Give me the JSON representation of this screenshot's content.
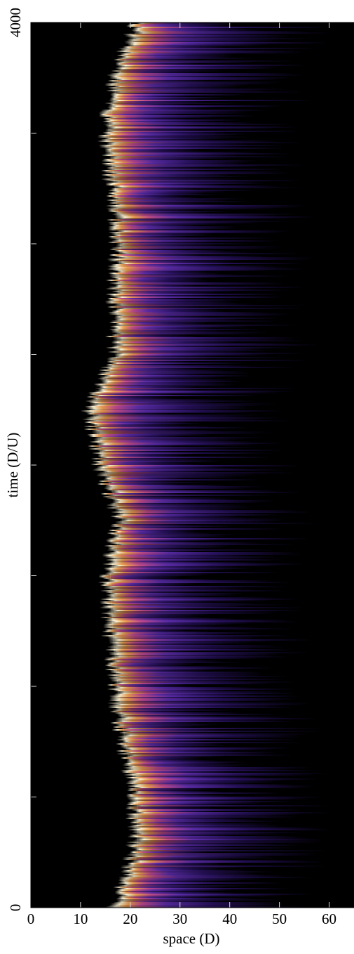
{
  "chart_data": {
    "type": "heatmap",
    "xlabel": "space (D)",
    "ylabel": "time (D/U)",
    "xlim": [
      0,
      65
    ],
    "xticks": [
      0,
      10,
      20,
      30,
      40,
      50,
      60
    ],
    "ylim": [
      0,
      4000
    ],
    "yticks": [
      0,
      4000
    ],
    "yminorticks": [
      500,
      1000,
      1500,
      2000,
      2500,
      3000,
      3500
    ],
    "time": [
      0,
      250,
      500,
      750,
      1000,
      1250,
      1500,
      1750,
      2000,
      2250,
      2500,
      2750,
      3000,
      3250,
      3500,
      3750,
      4000
    ],
    "front": [
      17.7,
      21.5,
      21.5,
      19,
      17.5,
      16.5,
      16,
      18.5,
      14.5,
      12.5,
      17.5,
      17.5,
      18,
      17,
      15.5,
      17.5,
      22
    ],
    "colors": [
      "#000000",
      "#fff6d8",
      "#f0a050",
      "#c04a8c",
      "#5a2ca8",
      "#25105a",
      "#000000"
    ]
  }
}
